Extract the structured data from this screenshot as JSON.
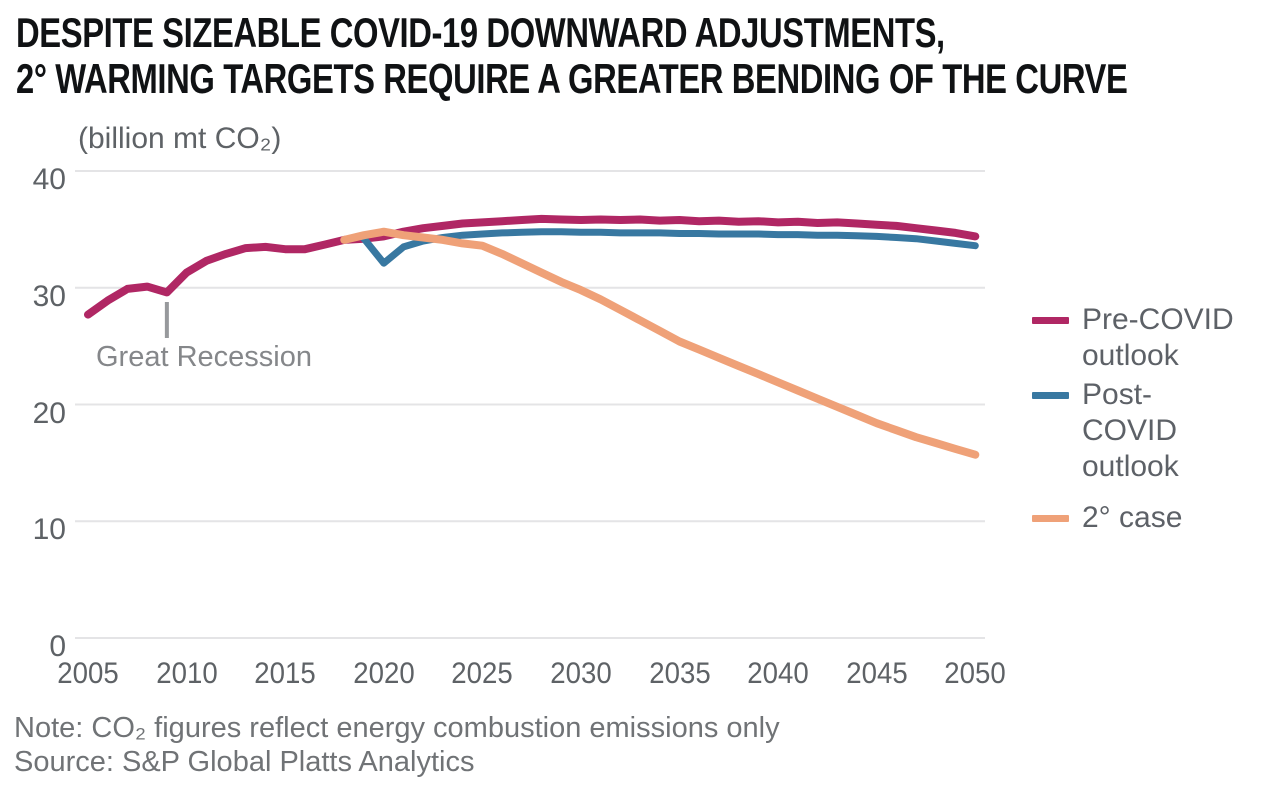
{
  "chart_data": {
    "type": "line",
    "title_lines": [
      "DESPITE SIZEABLE COVID-19 DOWNWARD ADJUSTMENTS,",
      "2° WARMING TARGETS REQUIRE A GREATER BENDING OF THE CURVE"
    ],
    "ylabel": "(billion mt CO₂)",
    "xlabel": "",
    "xlim": [
      2005,
      2050
    ],
    "ylim": [
      0,
      40
    ],
    "x_ticks": [
      2005,
      2010,
      2015,
      2020,
      2025,
      2030,
      2035,
      2040,
      2045,
      2050
    ],
    "y_ticks": [
      0,
      10,
      20,
      30,
      40
    ],
    "grid": "horizontal",
    "grid_color": "#e4e4e6",
    "legend_position": "right",
    "series": [
      {
        "name": "Pre-COVID outlook",
        "color": "#b02764",
        "x": [
          2005,
          2006,
          2007,
          2008,
          2009,
          2010,
          2011,
          2012,
          2013,
          2014,
          2015,
          2016,
          2017,
          2018,
          2019,
          2020,
          2021,
          2022,
          2023,
          2024,
          2025,
          2026,
          2027,
          2028,
          2029,
          2030,
          2031,
          2032,
          2033,
          2034,
          2035,
          2036,
          2037,
          2038,
          2039,
          2040,
          2041,
          2042,
          2043,
          2044,
          2045,
          2046,
          2047,
          2048,
          2049,
          2050
        ],
        "values": [
          27.7,
          28.9,
          29.9,
          30.1,
          29.6,
          31.3,
          32.3,
          32.9,
          33.4,
          33.5,
          33.3,
          33.3,
          33.7,
          34.1,
          34.2,
          34.4,
          34.8,
          35.1,
          35.3,
          35.5,
          35.6,
          35.7,
          35.8,
          35.9,
          35.85,
          35.8,
          35.85,
          35.8,
          35.85,
          35.75,
          35.8,
          35.7,
          35.75,
          35.65,
          35.7,
          35.6,
          35.65,
          35.55,
          35.6,
          35.5,
          35.4,
          35.3,
          35.1,
          34.9,
          34.7,
          34.4
        ]
      },
      {
        "name": "Post-COVID outlook",
        "color": "#3878a1",
        "x": [
          2019,
          2020,
          2021,
          2022,
          2023,
          2024,
          2025,
          2026,
          2027,
          2028,
          2029,
          2030,
          2031,
          2032,
          2033,
          2034,
          2035,
          2036,
          2037,
          2038,
          2039,
          2040,
          2041,
          2042,
          2043,
          2044,
          2045,
          2046,
          2047,
          2048,
          2049,
          2050
        ],
        "values": [
          34.2,
          32.1,
          33.5,
          34.0,
          34.3,
          34.5,
          34.6,
          34.7,
          34.75,
          34.8,
          34.8,
          34.75,
          34.75,
          34.7,
          34.7,
          34.7,
          34.65,
          34.65,
          34.6,
          34.6,
          34.6,
          34.55,
          34.55,
          34.5,
          34.5,
          34.45,
          34.4,
          34.3,
          34.2,
          34.0,
          33.8,
          33.6
        ]
      },
      {
        "name": "2° case",
        "color": "#efa178",
        "x": [
          2018,
          2019,
          2020,
          2021,
          2022,
          2023,
          2024,
          2025,
          2026,
          2027,
          2028,
          2029,
          2030,
          2031,
          2032,
          2033,
          2034,
          2035,
          2036,
          2037,
          2038,
          2039,
          2040,
          2041,
          2042,
          2043,
          2044,
          2045,
          2046,
          2047,
          2048,
          2049,
          2050
        ],
        "values": [
          34.1,
          34.5,
          34.8,
          34.5,
          34.3,
          34.1,
          33.8,
          33.6,
          32.9,
          32.1,
          31.3,
          30.5,
          29.8,
          29.0,
          28.1,
          27.2,
          26.3,
          25.4,
          24.7,
          24.0,
          23.3,
          22.6,
          21.9,
          21.2,
          20.5,
          19.8,
          19.1,
          18.4,
          17.8,
          17.2,
          16.7,
          16.2,
          15.7
        ]
      }
    ],
    "annotations": [
      {
        "text": "Great Recession",
        "x": 2009,
        "marker": "vertical-tick",
        "marker_color": "#97999c"
      }
    ]
  },
  "footer": {
    "note": "Note: CO₂ figures reflect energy combustion emissions only",
    "source": "Source: S&P Global Platts Analytics"
  }
}
